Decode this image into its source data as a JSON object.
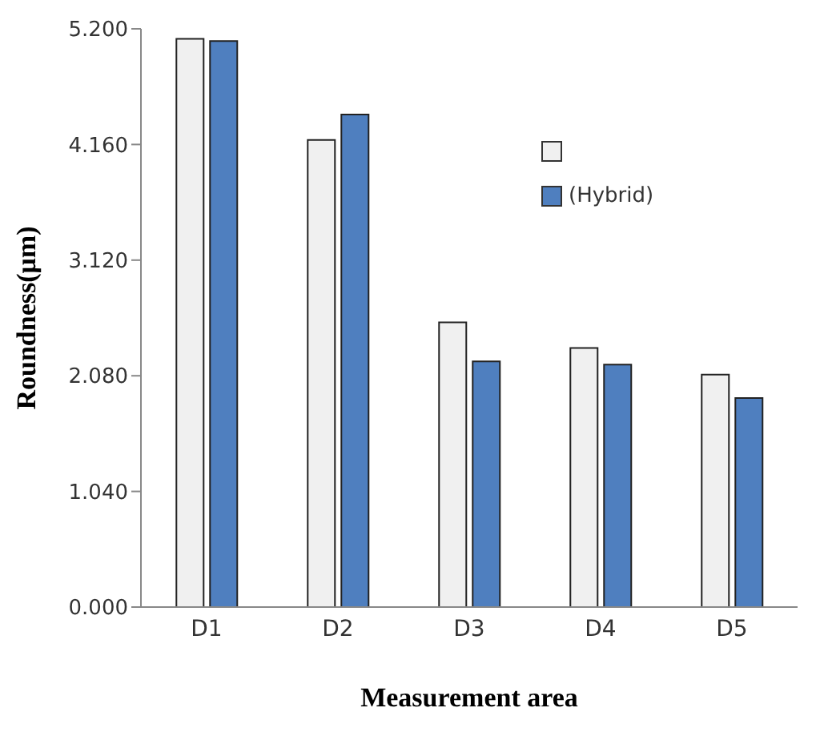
{
  "chart_data": {
    "type": "bar",
    "xlabel": "Measurement  area",
    "ylabel": "Roundness(μm)",
    "categories": [
      "D1",
      "D2",
      "D3",
      "D4",
      "D5"
    ],
    "series": [
      {
        "color": "#f0f0f0",
        "values": [
          5.11,
          4.2,
          2.56,
          2.33,
          2.09
        ]
      },
      {
        "name": "(Hybrid)",
        "color": "#4f7fbf",
        "values": [
          5.09,
          4.43,
          2.21,
          2.18,
          1.88
        ]
      }
    ],
    "ylim": [
      0,
      5.2
    ],
    "yticks": [
      {
        "value": 0,
        "label": "0.000"
      },
      {
        "value": 1.04,
        "label": "1.040"
      },
      {
        "value": 2.08,
        "label": "2.080"
      },
      {
        "value": 3.12,
        "label": "3.120"
      },
      {
        "value": 4.16,
        "label": "4.160"
      },
      {
        "value": 5.2,
        "label": "5.200"
      }
    ],
    "grid": false,
    "legend": "top right"
  }
}
